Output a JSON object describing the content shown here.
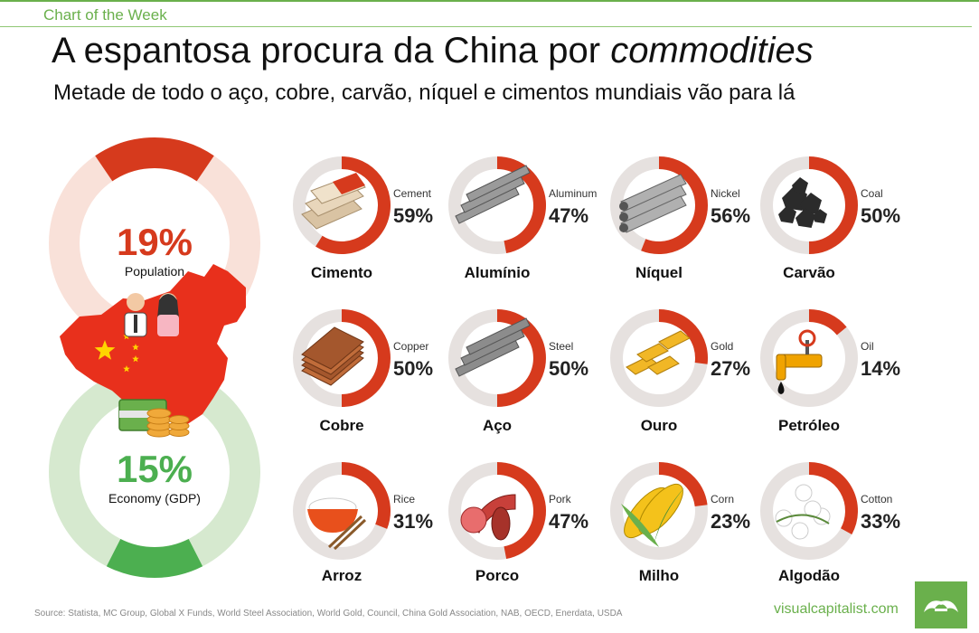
{
  "header": {
    "tag": "Chart of the Week",
    "title_main": "A espantosa procura da China por ",
    "title_em": "commodities",
    "subtitle": "Metade de todo o aço, cobre, carvão, níquel e cimentos mundiais vão para lá"
  },
  "footer": {
    "source": "Source: Statista, MC Group, Global X Funds, World Steel Association, World Gold, Council, China Gold Association, NAB, OECD, Enerdata, USDA",
    "brand": "visualcapitalist.com"
  },
  "colors": {
    "accent_red": "#d63a1d",
    "ring_bg": "#e6e1df",
    "pop_bg": "#f9e1d9",
    "gdp_fg": "#4caf50",
    "gdp_bg": "#d6e9cf",
    "brand_green": "#6ab04c"
  },
  "chart_data": [
    {
      "type": "pie",
      "title": "",
      "items": [
        {
          "label": "Population",
          "value": 19,
          "display": "19%",
          "color": "#d63a1d"
        },
        {
          "label": "Economy (GDP)",
          "value": 15,
          "display": "15%",
          "color": "#4caf50"
        }
      ]
    },
    {
      "type": "pie",
      "title": "",
      "items": [
        {
          "english": "Cement",
          "label": "Cimento",
          "value": 59,
          "display": "59%",
          "icon": "cement-bags-icon"
        },
        {
          "english": "Aluminum",
          "label": "Alumínio",
          "value": 47,
          "display": "47%",
          "icon": "aluminum-bars-icon"
        },
        {
          "english": "Nickel",
          "label": "Níquel",
          "value": 56,
          "display": "56%",
          "icon": "nickel-pipes-icon"
        },
        {
          "english": "Coal",
          "label": "Carvão",
          "value": 50,
          "display": "50%",
          "icon": "coal-icon"
        },
        {
          "english": "Copper",
          "label": "Cobre",
          "value": 50,
          "display": "50%",
          "icon": "copper-sheets-icon"
        },
        {
          "english": "Steel",
          "label": "Aço",
          "value": 50,
          "display": "50%",
          "icon": "steel-beams-icon"
        },
        {
          "english": "Gold",
          "label": "Ouro",
          "value": 27,
          "display": "27%",
          "icon": "gold-bars-icon"
        },
        {
          "english": "Oil",
          "label": "Petróleo",
          "value": 14,
          "display": "14%",
          "icon": "oil-valve-icon"
        },
        {
          "english": "Rice",
          "label": "Arroz",
          "value": 31,
          "display": "31%",
          "icon": "rice-bowl-icon"
        },
        {
          "english": "Pork",
          "label": "Porco",
          "value": 47,
          "display": "47%",
          "icon": "sausage-icon"
        },
        {
          "english": "Corn",
          "label": "Milho",
          "value": 23,
          "display": "23%",
          "icon": "corn-icon"
        },
        {
          "english": "Cotton",
          "label": "Algodão",
          "value": 33,
          "display": "33%",
          "icon": "cotton-icon"
        }
      ]
    }
  ]
}
